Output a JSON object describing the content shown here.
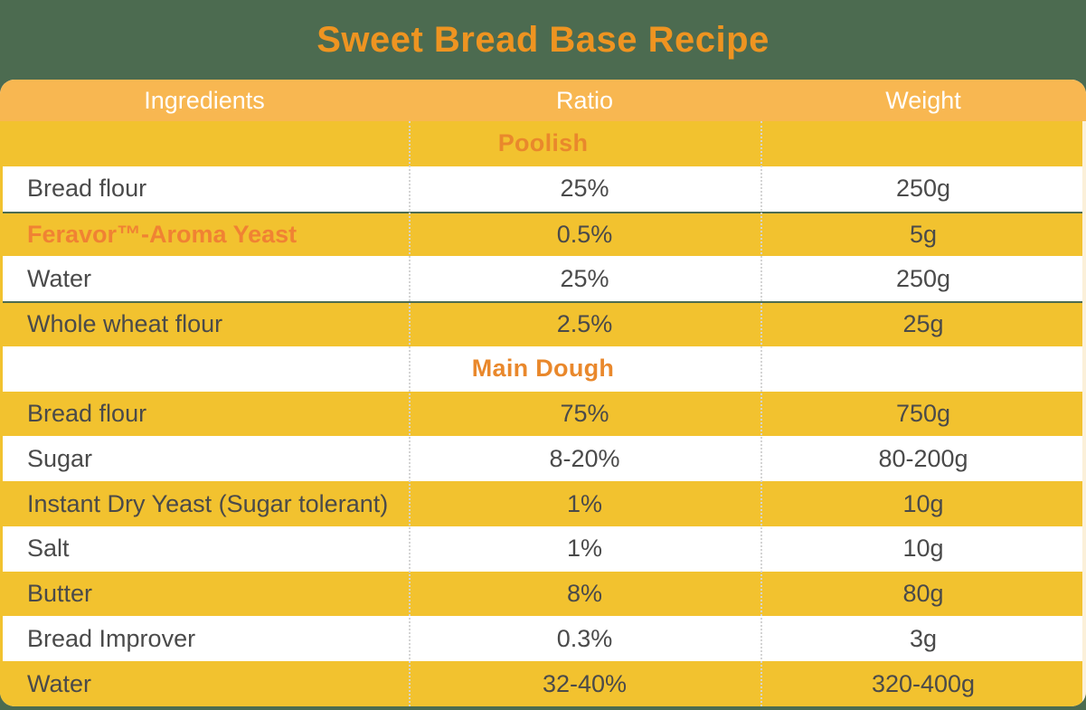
{
  "page": {
    "title": "Sweet Bread Base Recipe"
  },
  "table": {
    "headers": [
      "Ingredients",
      "Ratio",
      "Weight"
    ],
    "rows": [
      {
        "type": "section",
        "label": "Poolish"
      },
      {
        "type": "item",
        "ingredient": "Bread flour",
        "ratio": "25%",
        "weight": "250g"
      },
      {
        "type": "item",
        "ingredient": "Feravor™-Aroma Yeast",
        "ratio": "0.5%",
        "weight": "5g"
      },
      {
        "type": "item",
        "ingredient": "Water",
        "ratio": "25%",
        "weight": "250g"
      },
      {
        "type": "item",
        "ingredient": "Whole wheat flour",
        "ratio": "2.5%",
        "weight": "25g"
      },
      {
        "type": "section",
        "label": "Main Dough"
      },
      {
        "type": "item",
        "ingredient": "Bread flour",
        "ratio": "75%",
        "weight": "750g"
      },
      {
        "type": "item",
        "ingredient": "Sugar",
        "ratio": "8-20%",
        "weight": "80-200g"
      },
      {
        "type": "item",
        "ingredient": "Instant Dry Yeast (Sugar tolerant)",
        "ratio": "1%",
        "weight": "10g"
      },
      {
        "type": "item",
        "ingredient": "Salt",
        "ratio": "1%",
        "weight": "10g"
      },
      {
        "type": "item",
        "ingredient": "Butter",
        "ratio": "8%",
        "weight": "80g"
      },
      {
        "type": "item",
        "ingredient": "Bread Improver",
        "ratio": "0.3%",
        "weight": "3g"
      },
      {
        "type": "item",
        "ingredient": "Water",
        "ratio": "32-40%",
        "weight": "320-400g"
      }
    ]
  },
  "chart_data": {
    "type": "table",
    "title": "Sweet Bread Base Recipe",
    "columns": [
      "Ingredients",
      "Ratio",
      "Weight"
    ],
    "sections": [
      {
        "name": "Poolish",
        "rows": [
          [
            "Bread flour",
            "25%",
            "250g"
          ],
          [
            "Feravor™-Aroma Yeast",
            "0.5%",
            "5g"
          ],
          [
            "Water",
            "25%",
            "250g"
          ],
          [
            "Whole wheat flour",
            "2.5%",
            "25g"
          ]
        ]
      },
      {
        "name": "Main Dough",
        "rows": [
          [
            "Bread flour",
            "75%",
            "750g"
          ],
          [
            "Sugar",
            "8-20%",
            "80-200g"
          ],
          [
            "Instant Dry Yeast (Sugar tolerant)",
            "1%",
            "10g"
          ],
          [
            "Salt",
            "1%",
            "10g"
          ],
          [
            "Butter",
            "8%",
            "80g"
          ],
          [
            "Bread Improver",
            "0.3%",
            "3g"
          ],
          [
            "Water",
            "32-40%",
            "320-400g"
          ]
        ]
      }
    ]
  },
  "colors": {
    "background_green": "#4C6B50",
    "header_amber": "#F8B751",
    "row_yellow": "#F2C22F",
    "row_white": "#FFFFFF",
    "title_orange": "#EE9421",
    "section_orange": "#E9882C",
    "highlight_orange": "#F08233",
    "text_dark": "#4A4A4A",
    "edge_cream": "#FBF0D9"
  }
}
